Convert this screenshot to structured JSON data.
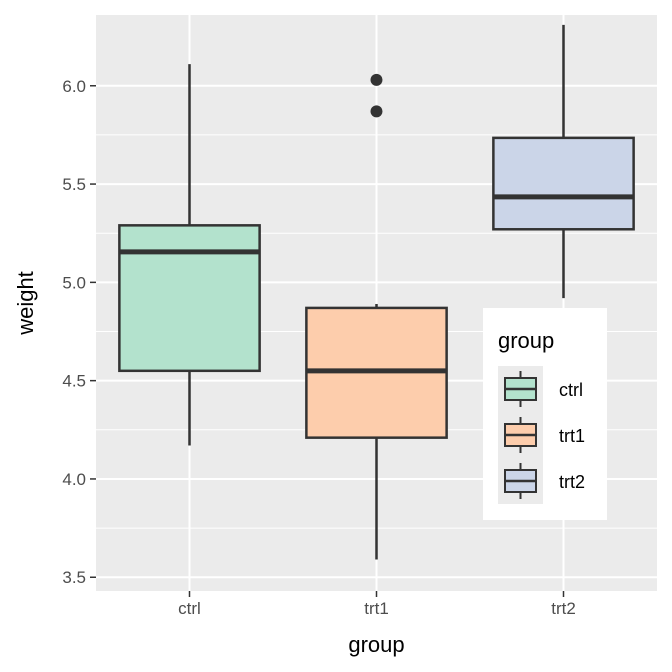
{
  "chart_data": {
    "type": "box",
    "xlabel": "group",
    "ylabel": "weight",
    "categories": [
      "ctrl",
      "trt1",
      "trt2"
    ],
    "ylim": [
      3.43,
      6.36
    ],
    "yticks": [
      3.5,
      4.0,
      4.5,
      5.0,
      5.5,
      6.0
    ],
    "ytick_labels": [
      "3.5",
      "4.0",
      "4.5",
      "5.0",
      "5.5",
      "6.0"
    ],
    "grid": true,
    "boxes": [
      {
        "group": "ctrl",
        "min": 4.17,
        "q1": 4.55,
        "median": 5.155,
        "q3": 5.29,
        "max": 6.11,
        "outliers": [],
        "color": "#b3e2cd"
      },
      {
        "group": "trt1",
        "min": 3.59,
        "q1": 4.21,
        "median": 4.55,
        "q3": 4.87,
        "max": 4.89,
        "outliers": [
          5.87,
          6.03
        ],
        "color": "#fdcdac"
      },
      {
        "group": "trt2",
        "min": 4.92,
        "q1": 5.27,
        "median": 5.435,
        "q3": 5.735,
        "max": 6.31,
        "outliers": [],
        "color": "#cbd5e8"
      }
    ],
    "legend": {
      "title": "group",
      "placement": "bottom-right inside",
      "entries": [
        "ctrl",
        "trt1",
        "trt2"
      ]
    },
    "colors": {
      "panel": "#ebebeb",
      "grid": "#ffffff",
      "box_line": "#333333"
    }
  }
}
